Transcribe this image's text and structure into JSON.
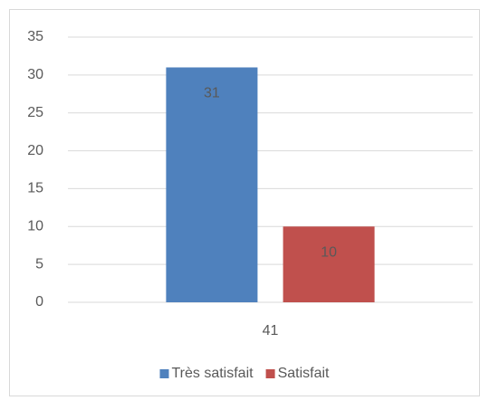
{
  "chart_data": {
    "type": "bar",
    "categories": [
      "41"
    ],
    "series": [
      {
        "name": "Très satisfait",
        "color": "#4f81bd",
        "values": [
          31
        ]
      },
      {
        "name": "Satisfait",
        "color": "#c0504d",
        "values": [
          10
        ]
      }
    ],
    "ylim": [
      0,
      35
    ],
    "yticks": [
      0,
      5,
      10,
      15,
      20,
      25,
      30,
      35
    ],
    "grid": true,
    "legend": "bottom"
  }
}
